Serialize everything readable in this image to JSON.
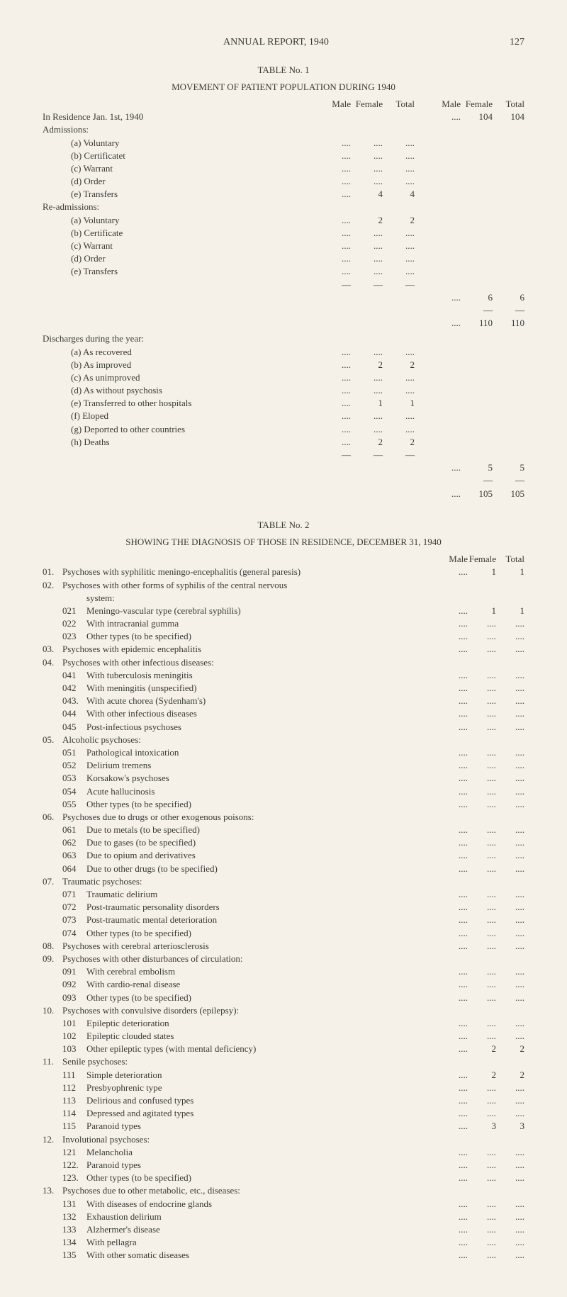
{
  "header": {
    "title": "ANNUAL REPORT, 1940",
    "page": "127"
  },
  "table1": {
    "label": "TABLE No. 1",
    "title": "MOVEMENT OF PATIENT POPULATION DURING 1940",
    "col_headers_left": [
      "Male",
      "Female",
      "Total"
    ],
    "col_headers_right": [
      "Male",
      "Female",
      "Total"
    ],
    "rows": [
      {
        "label": "In Residence Jan. 1st, 1940",
        "indent": 0,
        "r": [
          "....",
          "104",
          "104"
        ]
      },
      {
        "label": "Admissions:",
        "indent": 0
      },
      {
        "label": "(a) Voluntary",
        "indent": 2,
        "l": [
          "....",
          "....",
          "...."
        ]
      },
      {
        "label": "(b) Certificatet",
        "indent": 2,
        "l": [
          "....",
          "....",
          "...."
        ]
      },
      {
        "label": "(c) Warrant",
        "indent": 2,
        "l": [
          "....",
          "....",
          "...."
        ]
      },
      {
        "label": "(d) Order",
        "indent": 2,
        "l": [
          "....",
          "....",
          "...."
        ]
      },
      {
        "label": "(e) Transfers",
        "indent": 2,
        "l": [
          "....",
          "4",
          "4"
        ]
      },
      {
        "label": "Re-admissions:",
        "indent": 0
      },
      {
        "label": "(a) Voluntary",
        "indent": 2,
        "l": [
          "....",
          "2",
          "2"
        ]
      },
      {
        "label": "(b) Certificate",
        "indent": 2,
        "l": [
          "....",
          "....",
          "...."
        ]
      },
      {
        "label": "(c) Warrant",
        "indent": 2,
        "l": [
          "....",
          "....",
          "...."
        ]
      },
      {
        "label": "(d) Order",
        "indent": 2,
        "l": [
          "....",
          "....",
          "...."
        ]
      },
      {
        "label": "(e) Transfers",
        "indent": 2,
        "l": [
          "....",
          "....",
          "...."
        ]
      },
      {
        "rule": "left"
      },
      {
        "r": [
          "....",
          "6",
          "6"
        ]
      },
      {
        "rule": "right"
      },
      {
        "r": [
          "....",
          "110",
          "110"
        ]
      },
      {
        "gap": true
      },
      {
        "label": "Discharges during the year:",
        "indent": 0
      },
      {
        "label": "(a) As recovered",
        "indent": 2,
        "l": [
          "....",
          "....",
          "...."
        ]
      },
      {
        "label": "(b) As improved",
        "indent": 2,
        "l": [
          "....",
          "2",
          "2"
        ]
      },
      {
        "label": "(c) As unimproved",
        "indent": 2,
        "l": [
          "....",
          "....",
          "...."
        ]
      },
      {
        "label": "(d) As without psychosis",
        "indent": 2,
        "l": [
          "....",
          "....",
          "...."
        ]
      },
      {
        "label": "(e) Transferred to other hospitals",
        "indent": 2,
        "l": [
          "....",
          "1",
          "1"
        ]
      },
      {
        "label": "(f) Eloped",
        "indent": 2,
        "l": [
          "....",
          "....",
          "...."
        ]
      },
      {
        "label": "(g) Deported to other countries",
        "indent": 2,
        "l": [
          "....",
          "....",
          "...."
        ]
      },
      {
        "label": "(h) Deaths",
        "indent": 2,
        "l": [
          "....",
          "2",
          "2"
        ]
      },
      {
        "rule": "left"
      },
      {
        "r": [
          "....",
          "5",
          "5"
        ]
      },
      {
        "rule": "right"
      },
      {
        "r": [
          "....",
          "105",
          "105"
        ]
      }
    ]
  },
  "table2": {
    "label": "TABLE No. 2",
    "title": "SHOWING THE DIAGNOSIS OF THOSE IN RESIDENCE, DECEMBER 31, 1940",
    "col_headers": [
      "Male",
      "Female",
      "Total"
    ],
    "rows": [
      {
        "num": "01.",
        "label": "Psychoses with syphilitic meningo-encephalitis (general paresis)",
        "v": [
          "....",
          "1",
          "1"
        ]
      },
      {
        "num": "02.",
        "label": "Psychoses with other forms of syphilis of the central nervous"
      },
      {
        "label": "system:",
        "indent": 3
      },
      {
        "code": "021",
        "label": "Meningo-vascular type (cerebral syphilis)",
        "v": [
          "....",
          "1",
          "1"
        ]
      },
      {
        "code": "022",
        "label": "With intracranial gumma",
        "v": [
          "....",
          "....",
          "...."
        ]
      },
      {
        "code": "023",
        "label": "Other types (to be specified)",
        "v": [
          "....",
          "....",
          "...."
        ]
      },
      {
        "num": "03.",
        "label": "Psychoses with epidemic encephalitis",
        "v": [
          "....",
          "....",
          "...."
        ]
      },
      {
        "num": "04.",
        "label": "Psychoses with other infectious diseases:"
      },
      {
        "code": "041",
        "label": "With tuberculosis meningitis",
        "v": [
          "....",
          "....",
          "...."
        ]
      },
      {
        "code": "042",
        "label": "With meningitis (unspecified)",
        "v": [
          "....",
          "....",
          "...."
        ]
      },
      {
        "code": "043.",
        "label": "With acute chorea (Sydenham's)",
        "v": [
          "....",
          "....",
          "...."
        ]
      },
      {
        "code": "044",
        "label": "With other infectious diseases",
        "v": [
          "....",
          "....",
          "...."
        ]
      },
      {
        "code": "045",
        "label": "Post-infectious psychoses",
        "v": [
          "....",
          "....",
          "...."
        ]
      },
      {
        "num": "05.",
        "label": "Alcoholic psychoses:"
      },
      {
        "code": "051",
        "label": "Pathological intoxication",
        "v": [
          "....",
          "....",
          "...."
        ]
      },
      {
        "code": "052",
        "label": "Delirium tremens",
        "v": [
          "....",
          "....",
          "...."
        ]
      },
      {
        "code": "053",
        "label": "Korsakow's psychoses",
        "v": [
          "....",
          "....",
          "...."
        ]
      },
      {
        "code": "054",
        "label": "Acute hallucinosis",
        "v": [
          "....",
          "....",
          "...."
        ]
      },
      {
        "code": "055",
        "label": "Other types (to be specified)",
        "v": [
          "....",
          "....",
          "...."
        ]
      },
      {
        "num": "06.",
        "label": "Psychoses due to drugs or other exogenous poisons:"
      },
      {
        "code": "061",
        "label": "Due to metals (to be specified)",
        "v": [
          "....",
          "....",
          "...."
        ]
      },
      {
        "code": "062",
        "label": "Due to gases (to be specified)",
        "v": [
          "....",
          "....",
          "...."
        ]
      },
      {
        "code": "063",
        "label": "Due to opium and derivatives",
        "v": [
          "....",
          "....",
          "...."
        ]
      },
      {
        "code": "064",
        "label": "Due to other drugs (to be specified)",
        "v": [
          "....",
          "....",
          "...."
        ]
      },
      {
        "num": "07.",
        "label": "Traumatic psychoses:"
      },
      {
        "code": "071",
        "label": "Traumatic delirium",
        "v": [
          "....",
          "....",
          "...."
        ]
      },
      {
        "code": "072",
        "label": "Post-traumatic personality disorders",
        "v": [
          "....",
          "....",
          "...."
        ]
      },
      {
        "code": "073",
        "label": "Post-traumatic mental deterioration",
        "v": [
          "....",
          "....",
          "...."
        ]
      },
      {
        "code": "074",
        "label": "Other types (to be specified)",
        "v": [
          "....",
          "....",
          "...."
        ]
      },
      {
        "num": "08.",
        "label": "Psychoses with cerebral arteriosclerosis",
        "v": [
          "....",
          "....",
          "...."
        ]
      },
      {
        "num": "09.",
        "label": "Psychoses with other disturbances of circulation:"
      },
      {
        "code": "091",
        "label": "With cerebral embolism",
        "v": [
          "....",
          "....",
          "...."
        ]
      },
      {
        "code": "092",
        "label": "With cardio-renal disease",
        "v": [
          "....",
          "....",
          "...."
        ]
      },
      {
        "code": "093",
        "label": "Other types (to be specified)",
        "v": [
          "....",
          "....",
          "...."
        ]
      },
      {
        "num": "10.",
        "label": "Psychoses with convulsive disorders (epilepsy):"
      },
      {
        "code": "101",
        "label": "Epileptic deterioration",
        "v": [
          "....",
          "....",
          "...."
        ]
      },
      {
        "code": "102",
        "label": "Epileptic clouded states",
        "v": [
          "....",
          "....",
          "...."
        ]
      },
      {
        "code": "103",
        "label": "Other epileptic types (with mental deficiency)",
        "v": [
          "....",
          "2",
          "2"
        ]
      },
      {
        "num": "11.",
        "label": "Senile psychoses:"
      },
      {
        "code": "111",
        "label": "Simple deterioration",
        "v": [
          "....",
          "2",
          "2"
        ]
      },
      {
        "code": "112",
        "label": "Presbyophrenic type",
        "v": [
          "....",
          "....",
          "...."
        ]
      },
      {
        "code": "113",
        "label": "Delirious and confused types",
        "v": [
          "....",
          "....",
          "...."
        ]
      },
      {
        "code": "114",
        "label": "Depressed and agitated types",
        "v": [
          "....",
          "....",
          "...."
        ]
      },
      {
        "code": "115",
        "label": "Paranoid types",
        "v": [
          "....",
          "3",
          "3"
        ]
      },
      {
        "num": "12.",
        "label": "Involutional psychoses:"
      },
      {
        "code": "121",
        "label": "Melancholia",
        "v": [
          "....",
          "....",
          "...."
        ]
      },
      {
        "code": "122.",
        "label": "Paranoid types",
        "v": [
          "....",
          "....",
          "...."
        ]
      },
      {
        "code": "123.",
        "label": "Other types (to be specified)",
        "v": [
          "....",
          "....",
          "...."
        ]
      },
      {
        "num": "13.",
        "label": "Psychoses due to other metabolic, etc., diseases:"
      },
      {
        "code": "131",
        "label": "With diseases of endocrine glands",
        "v": [
          "....",
          "....",
          "...."
        ]
      },
      {
        "code": "132",
        "label": "Exhaustion delirium",
        "v": [
          "....",
          "....",
          "...."
        ]
      },
      {
        "code": "133",
        "label": "Alzhermer's disease",
        "v": [
          "....",
          "....",
          "...."
        ]
      },
      {
        "code": "134",
        "label": "With pellagra",
        "v": [
          "....",
          "....",
          "...."
        ]
      },
      {
        "code": "135",
        "label": "With other somatic diseases",
        "v": [
          "....",
          "....",
          "...."
        ]
      }
    ]
  }
}
